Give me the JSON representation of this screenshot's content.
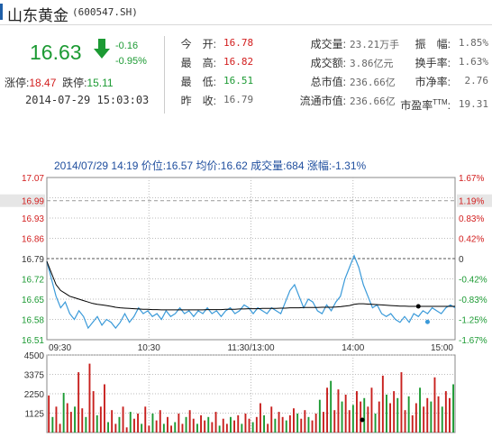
{
  "header": {
    "name": "山东黄金",
    "code": "(600547.SH)"
  },
  "quote": {
    "price": "16.63",
    "change": "-0.16",
    "change_pct": "-0.95%",
    "limit_up_label": "涨停",
    "limit_up": "18.47",
    "limit_down_label": "跌停",
    "limit_down": "15.11",
    "timestamp": "2014-07-29 15:03:03"
  },
  "stats": {
    "col1": [
      {
        "label": "今　开:",
        "value": "16.78",
        "tone": "red"
      },
      {
        "label": "最　高:",
        "value": "16.82",
        "tone": "red"
      },
      {
        "label": "最　低:",
        "value": "16.51",
        "tone": "green"
      },
      {
        "label": "昨　收:",
        "value": "16.79",
        "tone": "plain"
      }
    ],
    "col2": [
      {
        "label": "成交量:",
        "value": "23.21万手"
      },
      {
        "label": "成交额:",
        "value": "3.86亿元"
      },
      {
        "label": "总市值:",
        "value": "236.66亿"
      },
      {
        "label": "流通市值:",
        "value": "236.66亿"
      }
    ],
    "col3": [
      {
        "label": "振　幅:",
        "value": "1.85%"
      },
      {
        "label": "换手率:",
        "value": "1.63%"
      },
      {
        "label": "市净率:",
        "value": "2.76"
      },
      {
        "label": "市盈率",
        "sup": "TTM",
        "label_tail": ":",
        "value": "19.31"
      }
    ]
  },
  "chart_info": "2014/07/29 14:19 价位:16.57 均价:16.62 成交量:684 涨幅:-1.31%",
  "colors": {
    "red": "#d21d1d",
    "green": "#1c9a33",
    "price_line": "#3a9ad9",
    "avg_line": "#000000",
    "volume_red": "#c8201e",
    "volume_green": "#1c9a33"
  },
  "chart_data": [
    {
      "type": "line",
      "x_ticks": [
        "09:30",
        "10:30",
        "11:30/13:00",
        "14:00",
        "15:00"
      ],
      "ylim": [
        16.51,
        17.07
      ],
      "y_ticks": [
        "17.07",
        "17.00",
        "16.93",
        "16.86",
        "16.79",
        "16.72",
        "16.65",
        "16.58",
        "16.51"
      ],
      "y_ticks_right": [
        "1.67%",
        "1.25%",
        "0.83%",
        "0.42%",
        "0",
        "-0.42%",
        "-0.83%",
        "-1.25%",
        "-1.67%"
      ],
      "y_marker_left": "16.99",
      "y_marker_right": "1.19%",
      "reference_price": 16.79,
      "series": [
        {
          "values": [
            16.78,
            16.72,
            16.66,
            16.62,
            16.64,
            16.6,
            16.58,
            16.61,
            16.59,
            16.55,
            16.57,
            16.59,
            16.56,
            16.58,
            16.57,
            16.55,
            16.57,
            16.6,
            16.57,
            16.59,
            16.62,
            16.6,
            16.61,
            16.59,
            16.6,
            16.58,
            16.61,
            16.59,
            16.6,
            16.62,
            16.6,
            16.61,
            16.59,
            16.61,
            16.6,
            16.62,
            16.6,
            16.61,
            16.59,
            16.61,
            16.62,
            16.6,
            16.61,
            16.63,
            16.62,
            16.6,
            16.62,
            16.61,
            16.6,
            16.62,
            16.61,
            16.6,
            16.64,
            16.68,
            16.7,
            16.66,
            16.62,
            16.65,
            16.64,
            16.61,
            16.6,
            16.63,
            16.61,
            16.64,
            16.66,
            16.72,
            16.76,
            16.8,
            16.76,
            16.7,
            16.66,
            16.62,
            16.63,
            16.6,
            16.59,
            16.6,
            16.58,
            16.57,
            16.59,
            16.57,
            16.6,
            16.59,
            16.61,
            16.6,
            16.62,
            16.61,
            16.6,
            16.62,
            16.63,
            16.62
          ],
          "color": "#3a9ad9"
        },
        {
          "values": [
            16.78,
            16.74,
            16.7,
            16.68,
            16.67,
            16.66,
            16.655,
            16.65,
            16.645,
            16.64,
            16.635,
            16.632,
            16.63,
            16.628,
            16.625,
            16.622,
            16.62,
            16.619,
            16.618,
            16.617,
            16.616,
            16.615,
            16.615,
            16.614,
            16.614,
            16.613,
            16.613,
            16.613,
            16.613,
            16.613,
            16.613,
            16.613,
            16.613,
            16.613,
            16.613,
            16.614,
            16.614,
            16.614,
            16.614,
            16.615,
            16.615,
            16.615,
            16.616,
            16.616,
            16.617,
            16.617,
            16.617,
            16.618,
            16.618,
            16.618,
            16.618,
            16.619,
            16.619,
            16.62,
            16.62,
            16.62,
            16.621,
            16.621,
            16.621,
            16.621,
            16.622,
            16.622,
            16.622,
            16.623,
            16.624,
            16.626,
            16.628,
            16.632,
            16.634,
            16.634,
            16.633,
            16.632,
            16.631,
            16.63,
            16.629,
            16.628,
            16.627,
            16.626,
            16.626,
            16.625,
            16.625,
            16.625,
            16.625,
            16.625,
            16.625,
            16.625,
            16.625,
            16.625,
            16.625,
            16.625
          ],
          "color": "#000000"
        }
      ]
    },
    {
      "type": "bar",
      "y_ticks": [
        "4500",
        "3375",
        "2250",
        "1125"
      ],
      "ylim": [
        0,
        4500
      ],
      "values": [
        2150,
        900,
        1500,
        500,
        2300,
        1700,
        1200,
        1500,
        3500,
        1400,
        900,
        4000,
        2400,
        1000,
        1500,
        2800,
        600,
        1300,
        500,
        900,
        1500,
        300,
        1200,
        800,
        1100,
        500,
        1500,
        400,
        1100,
        700,
        1300,
        500,
        900,
        400,
        600,
        1100,
        500,
        900,
        1300,
        800,
        500,
        1000,
        700,
        900,
        600,
        1200,
        400,
        800,
        500,
        900,
        700,
        1000,
        500,
        1100,
        800,
        600,
        900,
        1700,
        1000,
        500,
        1500,
        800,
        1200,
        900,
        700,
        1000,
        1400,
        1100,
        800,
        1300,
        900,
        700,
        1100,
        1900,
        1200,
        2600,
        3000,
        1300,
        2500,
        1800,
        2200,
        1300,
        1600,
        2400,
        1800,
        2000,
        1500,
        2600,
        1100,
        1800,
        3300,
        2200,
        1700,
        2400,
        2000,
        3500,
        1300,
        2100,
        1000,
        1700,
        2600,
        1500,
        2000,
        1800,
        3200,
        2100,
        1500,
        2400,
        2000,
        2800
      ],
      "bar_colors": "alternate"
    }
  ]
}
